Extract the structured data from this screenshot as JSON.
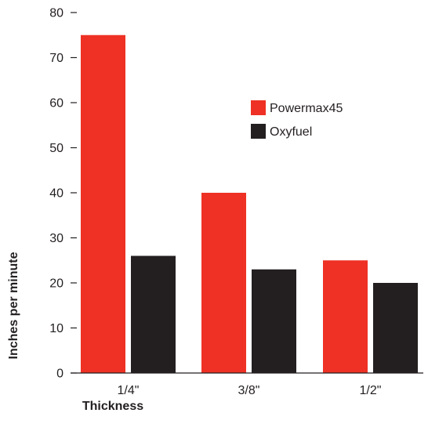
{
  "chart_data": {
    "type": "bar",
    "categories": [
      "1/4\"",
      "3/8\"",
      "1/2\""
    ],
    "series": [
      {
        "name": "Powermax45",
        "color": "#ee3124",
        "values": [
          75,
          40,
          25
        ]
      },
      {
        "name": "Oxyfuel",
        "color": "#231f20",
        "values": [
          26,
          23,
          20
        ]
      }
    ],
    "xlabel": "Thickness",
    "ylabel": "Inches per minute",
    "ylim": [
      0,
      80
    ],
    "yticks": [
      0,
      10,
      20,
      30,
      40,
      50,
      60,
      70,
      80
    ],
    "grid": false,
    "legend": "upper-right"
  }
}
